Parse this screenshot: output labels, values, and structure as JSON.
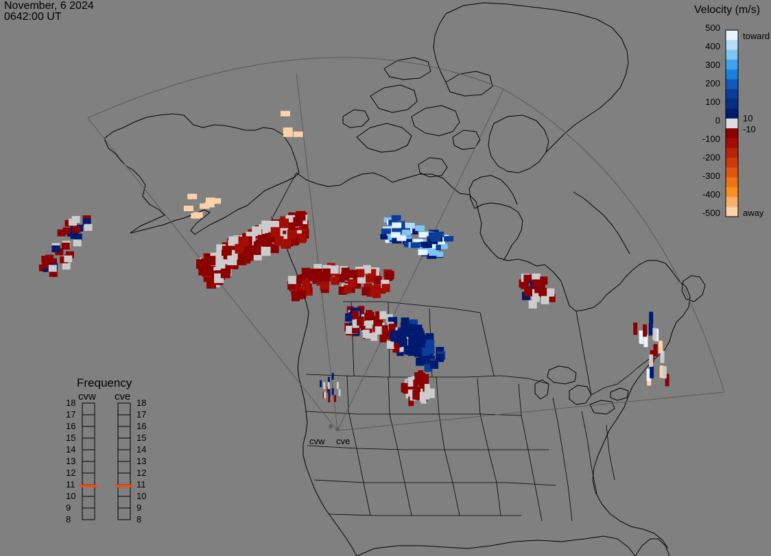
{
  "header": {
    "date": "November, 6 2024",
    "time": "0642:00 UT"
  },
  "colorbar": {
    "title": "Velocity (m/s)",
    "ticks_toward": [
      "500",
      "400",
      "300",
      "200",
      "100",
      "0"
    ],
    "ticks_away": [
      "-100",
      "-200",
      "-300",
      "-400",
      "-500"
    ],
    "inner_pos": "10",
    "inner_neg": "-10",
    "toward_label": "toward",
    "away_label": "away",
    "scale_colors": [
      "#e8f4ff",
      "#b5dcfb",
      "#7fc4f6",
      "#3fa2ec",
      "#1a7fd9",
      "#1058bc",
      "#0a3d98",
      "#062f84",
      "#001a70",
      "#dddddd",
      "#8b0000",
      "#a40d04",
      "#bb2208",
      "#cf3a0b",
      "#e0560f",
      "#ef7413",
      "#f99122",
      "#fbb06b",
      "#fdd2a8"
    ]
  },
  "frequency": {
    "title": "Frequency",
    "radars": [
      "cvw",
      "cve"
    ],
    "labels": [
      "18",
      "17",
      "16",
      "15",
      "14",
      "13",
      "12",
      "11",
      "10",
      "9",
      "8"
    ],
    "values_mhz": {
      "cvw": 10.9,
      "cve": 10.9
    },
    "marker_color": "#e8501a"
  },
  "sites": {
    "west": "cvw",
    "east": "cve"
  },
  "colors": {
    "background": "#808080",
    "coast": "#000000",
    "fov": "#5a5a5a",
    "ground_scatter": "#cccccc"
  }
}
